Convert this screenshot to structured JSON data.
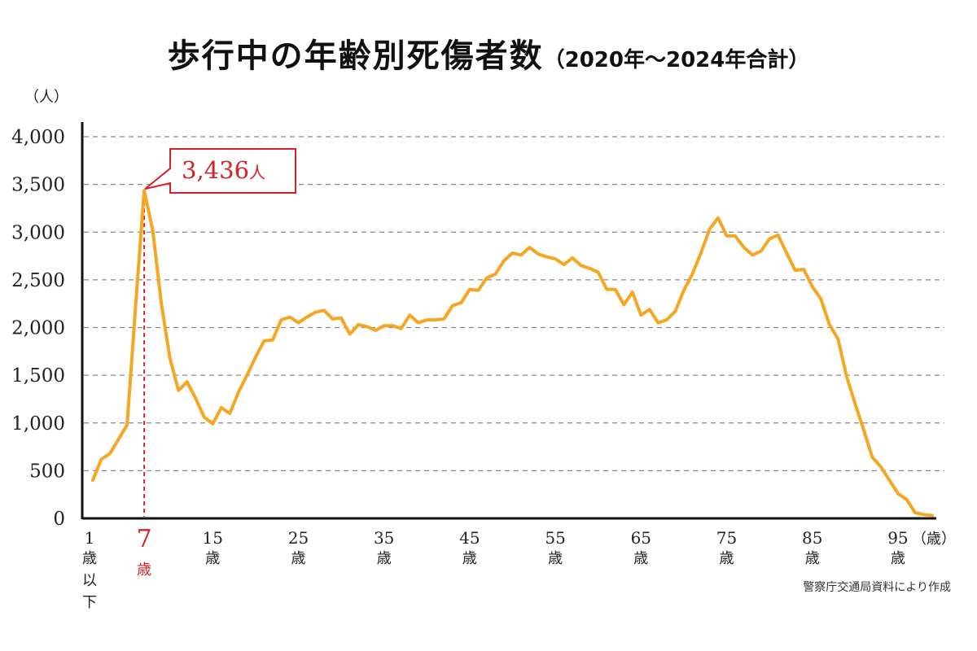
{
  "title": {
    "main": "歩行中の年齢別死傷者数",
    "sub": "（2020年～2024年合計）"
  },
  "source": "警察庁交通局資料により作成",
  "colors": {
    "line": "#f5a623",
    "accent": "#d62226",
    "grid": "#888888",
    "axis": "#111111"
  },
  "chart_data": {
    "type": "line",
    "ylabel": "（人）",
    "xunit": "（歳）",
    "ylim": [
      0,
      4000
    ],
    "yticks": [
      {
        "value": 0,
        "label": "0"
      },
      {
        "value": 500,
        "label": "500"
      },
      {
        "value": 1000,
        "label": "1,000"
      },
      {
        "value": 1500,
        "label": "1,500"
      },
      {
        "value": 2000,
        "label": "2,000"
      },
      {
        "value": 2500,
        "label": "2,500"
      },
      {
        "value": 3000,
        "label": "3,000"
      },
      {
        "value": 3500,
        "label": "3,500"
      },
      {
        "value": 4000,
        "label": "4,000"
      }
    ],
    "xlim": [
      1,
      99
    ],
    "xticks": [
      {
        "age": 1,
        "num": "1",
        "lines": [
          "歳",
          "以",
          "下"
        ],
        "highlight": false
      },
      {
        "age": 7,
        "num": "7",
        "lines": [
          "歳"
        ],
        "highlight": true
      },
      {
        "age": 15,
        "num": "15",
        "lines": [
          "歳"
        ],
        "highlight": false
      },
      {
        "age": 25,
        "num": "25",
        "lines": [
          "歳"
        ],
        "highlight": false
      },
      {
        "age": 35,
        "num": "35",
        "lines": [
          "歳"
        ],
        "highlight": false
      },
      {
        "age": 45,
        "num": "45",
        "lines": [
          "歳"
        ],
        "highlight": false
      },
      {
        "age": 55,
        "num": "55",
        "lines": [
          "歳"
        ],
        "highlight": false
      },
      {
        "age": 65,
        "num": "65",
        "lines": [
          "歳"
        ],
        "highlight": false
      },
      {
        "age": 75,
        "num": "75",
        "lines": [
          "歳"
        ],
        "highlight": false
      },
      {
        "age": 85,
        "num": "85",
        "lines": [
          "歳"
        ],
        "highlight": false
      },
      {
        "age": 95,
        "num": "95",
        "lines": [
          "歳"
        ],
        "highlight": false
      }
    ],
    "series": [
      {
        "x": [
          1,
          2,
          3,
          4,
          5,
          6,
          7,
          8,
          9,
          10,
          11,
          12,
          13,
          14,
          15,
          16,
          17,
          18,
          19,
          20,
          21,
          22,
          23,
          24,
          25,
          26,
          27,
          28,
          29,
          30,
          31,
          32,
          33,
          34,
          35,
          36,
          37,
          38,
          39,
          40,
          41,
          42,
          43,
          44,
          45,
          46,
          47,
          48,
          49,
          50,
          51,
          52,
          53,
          54,
          55,
          56,
          57,
          58,
          59,
          60,
          61,
          62,
          63,
          64,
          65,
          66,
          67,
          68,
          69,
          70,
          71,
          72,
          73,
          74,
          75,
          76,
          77,
          78,
          79,
          80,
          81,
          82,
          83,
          84,
          85,
          86,
          87,
          88,
          89,
          90,
          91,
          92,
          93,
          94,
          95,
          96,
          97,
          98,
          99
        ],
        "y": [
          400,
          620,
          680,
          830,
          980,
          2230,
          3436,
          3020,
          2250,
          1680,
          1340,
          1430,
          1260,
          1060,
          990,
          1160,
          1100,
          1320,
          1500,
          1690,
          1860,
          1870,
          2080,
          2110,
          2050,
          2110,
          2160,
          2180,
          2090,
          2100,
          1930,
          2030,
          2010,
          1970,
          2020,
          2020,
          1990,
          2130,
          2050,
          2080,
          2080,
          2090,
          2230,
          2260,
          2400,
          2390,
          2520,
          2560,
          2700,
          2780,
          2760,
          2840,
          2770,
          2740,
          2720,
          2660,
          2730,
          2650,
          2620,
          2580,
          2400,
          2400,
          2240,
          2370,
          2130,
          2190,
          2050,
          2080,
          2170,
          2390,
          2560,
          2780,
          3030,
          3150,
          2960,
          2960,
          2840,
          2760,
          2800,
          2930,
          2970,
          2780,
          2600,
          2610,
          2430,
          2300,
          2030,
          1880,
          1490,
          1200,
          930,
          640,
          540,
          400,
          260,
          200,
          60,
          40,
          30
        ]
      }
    ],
    "annotation": {
      "age": 7,
      "value": 3436,
      "number": "3,436",
      "unit": "人"
    }
  }
}
